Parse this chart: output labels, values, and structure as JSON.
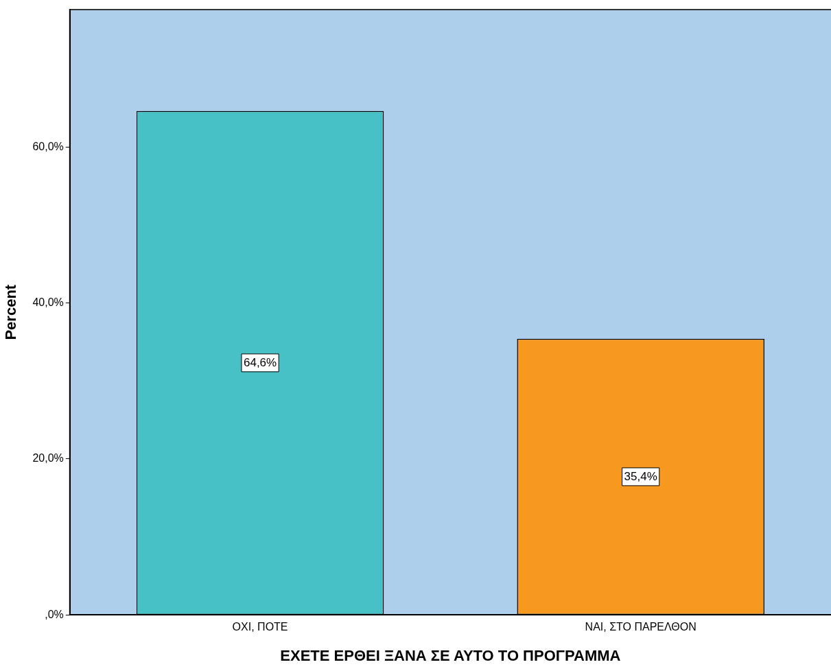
{
  "chart_data": {
    "type": "bar",
    "xlabel": "ΕΧΕΤΕ ΕΡΘΕΙ ΞΑΝΑ ΣΕ ΑΥΤΟ ΤΟ ΠΡΟΓΡΑΜΜΑ",
    "ylabel": "Percent",
    "categories": [
      "ΟΧΙ, ΠΟΤΕ",
      "ΝΑΙ, ΣΤΟ ΠΑΡΕΛΘΟΝ"
    ],
    "values": [
      64.6,
      35.4
    ],
    "colors": [
      "#48c1c6",
      "#f7981f"
    ],
    "value_labels": [
      "64,6%",
      "35,4%"
    ],
    "ylim": [
      0,
      77.6
    ],
    "yticks": [
      {
        "value": 0,
        "label": ",0%"
      },
      {
        "value": 20,
        "label": "20,0%"
      },
      {
        "value": 40,
        "label": "40,0%"
      },
      {
        "value": 60,
        "label": "60,0%"
      }
    ],
    "grid": false,
    "legend": false
  }
}
